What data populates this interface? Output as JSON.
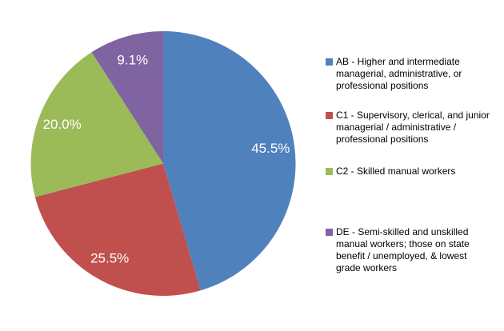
{
  "chart_data": {
    "type": "pie",
    "title": "",
    "slice_ids": [
      "AB",
      "C1",
      "C2",
      "DE"
    ],
    "categories": [
      "AB - Higher and intermediate managerial, administrative, or professional positions",
      "C1 - Supervisory, clerical, and junior managerial / administrative / professional positions",
      "C2 - Skilled manual workers",
      "DE - Semi-skilled and unskilled manual workers; those on state benefit / unemployed, & lowest grade workers"
    ],
    "values": [
      45.5,
      25.5,
      20.0,
      9.1
    ],
    "data_labels": [
      "45.5%",
      "25.5%",
      "20.0%",
      "9.1%"
    ],
    "colors": [
      "#4F81BD",
      "#C0504D",
      "#9BBB59",
      "#8064A2"
    ],
    "data_label_color": "#FFFFFF",
    "background_color": "#FFFFFF",
    "legend_position": "right",
    "start_angle_deg": 0,
    "direction": "clockwise",
    "legend_text_color": "#000000"
  }
}
